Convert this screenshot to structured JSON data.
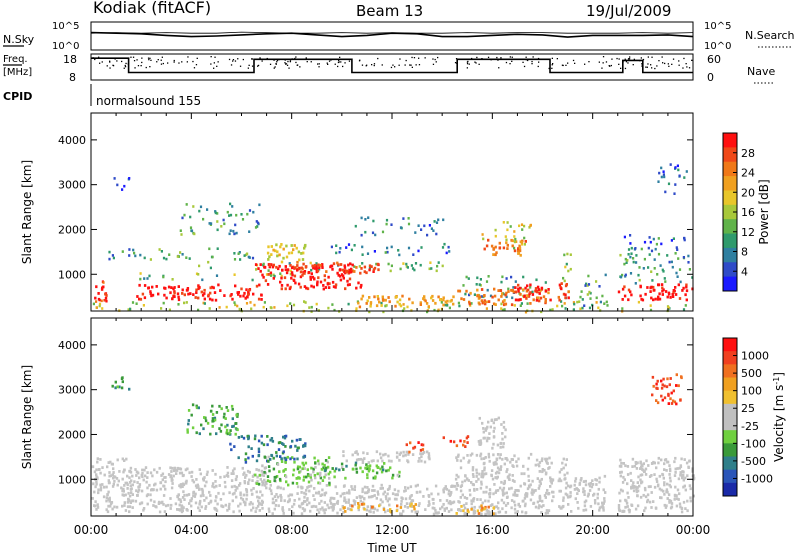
{
  "header": {
    "station": "Kodiak (fitACF)",
    "beam": "Beam 13",
    "date": "19/Jul/2009"
  },
  "panels": {
    "nsky": {
      "left_label": "N.Sky",
      "right_label": "N.Search",
      "left_ticks": [
        "10^5",
        "10^0"
      ],
      "right_ticks": [
        "10^5",
        "10^0"
      ],
      "sky_level": [
        3.1,
        3.0,
        2.9,
        2.6,
        2.4,
        2.5,
        2.7,
        2.9,
        3.0,
        2.7,
        2.4,
        2.6,
        3.0,
        2.9,
        2.4,
        2.4,
        2.6,
        2.8,
        2.7,
        2.3,
        2.6,
        2.6,
        2.6,
        2.7,
        2.4
      ],
      "search_level": [
        3.0,
        3.1,
        3.0,
        3.1,
        3.0,
        3.0,
        3.2,
        3.1,
        3.0,
        3.0,
        3.1,
        3.0,
        3.1,
        3.0,
        3.0,
        3.1,
        3.0,
        3.1,
        3.1,
        3.0,
        3.0,
        3.0,
        3.1,
        3.0,
        3.1
      ]
    },
    "freq": {
      "left_label": "Freq.",
      "left_unit": "[MHz]",
      "right_label": "Nave",
      "left_ticks": [
        "18",
        "8"
      ],
      "right_ticks": [
        "60",
        "0"
      ],
      "freq_steps": [
        {
          "t0": 0.0,
          "t1": 1.5,
          "f": 17
        },
        {
          "t0": 1.5,
          "t1": 6.5,
          "f": 10.5
        },
        {
          "t0": 6.5,
          "t1": 10.4,
          "f": 16.5
        },
        {
          "t0": 10.4,
          "t1": 14.6,
          "f": 10.5
        },
        {
          "t0": 14.6,
          "t1": 18.3,
          "f": 16.5
        },
        {
          "t0": 18.3,
          "t1": 21.2,
          "f": 10.5
        },
        {
          "t0": 21.2,
          "t1": 22.0,
          "f": 16
        },
        {
          "t0": 22.0,
          "t1": 24.0,
          "f": 10.5
        }
      ]
    },
    "cpid": {
      "label": "CPID",
      "program": "normalsound 155"
    }
  },
  "chart_data": [
    {
      "type": "heatmap",
      "title": "",
      "quantity": "Power",
      "ylabel": "Slant Range [km]",
      "xlabel": "",
      "xlim": [
        0,
        24
      ],
      "ylim": [
        180,
        4600
      ],
      "yticks": [
        1000,
        2000,
        3000,
        4000
      ],
      "colorbar": {
        "label": "Power [dB]",
        "ticks": [
          "4",
          "8",
          "12",
          "16",
          "20",
          "24",
          "28"
        ],
        "colors": [
          "#1a1aff",
          "#2f4bc8",
          "#2f7fa0",
          "#2f9a6c",
          "#60b34a",
          "#a8c83a",
          "#e8c62a",
          "#f0a020",
          "#f07818",
          "#f04818",
          "#ff1010"
        ]
      },
      "scatter_blocks": [
        {
          "t0": 0.0,
          "t1": 0.6,
          "r0": 300,
          "r1": 900,
          "level": 10
        },
        {
          "t0": 0.0,
          "t1": 24.0,
          "r0": 180,
          "r1": 420,
          "level": 5
        },
        {
          "t0": 0.5,
          "t1": 6.5,
          "r0": 1300,
          "r1": 1600,
          "level": 3
        },
        {
          "t0": 1.8,
          "t1": 8.0,
          "r0": 900,
          "r1": 1050,
          "level": 4
        },
        {
          "t0": 4.0,
          "t1": 14.0,
          "r0": 1100,
          "r1": 1300,
          "level": 4
        },
        {
          "t0": 9.5,
          "t1": 14.5,
          "r0": 1450,
          "r1": 1700,
          "level": 2
        },
        {
          "t0": 3.5,
          "t1": 6.8,
          "r0": 1900,
          "r1": 2600,
          "level": 3
        },
        {
          "t0": 10.5,
          "t1": 14.0,
          "r0": 1900,
          "r1": 2300,
          "level": 2
        },
        {
          "t0": 14.6,
          "t1": 18.3,
          "r0": 500,
          "r1": 1000,
          "level": 3
        },
        {
          "t0": 15.5,
          "t1": 17.5,
          "r0": 1600,
          "r1": 2200,
          "level": 6
        },
        {
          "t0": 18.6,
          "t1": 19.1,
          "r0": 300,
          "r1": 1500,
          "level": 4
        },
        {
          "t0": 19.2,
          "t1": 20.5,
          "r0": 300,
          "r1": 1100,
          "level": 3
        },
        {
          "t0": 21.0,
          "t1": 24.0,
          "r0": 800,
          "r1": 1500,
          "level": 3
        },
        {
          "t0": 21.2,
          "t1": 24.0,
          "r0": 1400,
          "r1": 1900,
          "level": 2
        },
        {
          "t0": 0.8,
          "t1": 1.5,
          "r0": 2900,
          "r1": 3300,
          "level": 1
        },
        {
          "t0": 22.5,
          "t1": 23.8,
          "r0": 2800,
          "r1": 3500,
          "level": 1
        }
      ],
      "bands": [
        {
          "t0": 0.1,
          "t1": 0.6,
          "r0": 450,
          "r1": 800,
          "level": 10
        },
        {
          "t0": 1.8,
          "t1": 6.8,
          "r0": 450,
          "r1": 800,
          "level": 10
        },
        {
          "t0": 6.5,
          "t1": 10.8,
          "r0": 700,
          "r1": 1250,
          "level": 10
        },
        {
          "t0": 8.0,
          "t1": 11.5,
          "r0": 1050,
          "r1": 1300,
          "level": 9
        },
        {
          "t0": 10.5,
          "t1": 14.5,
          "r0": 300,
          "r1": 550,
          "level": 7
        },
        {
          "t0": 14.6,
          "t1": 18.3,
          "r0": 350,
          "r1": 700,
          "level": 8
        },
        {
          "t0": 15.6,
          "t1": 17.3,
          "r0": 1450,
          "r1": 1800,
          "level": 8
        },
        {
          "t0": 21.0,
          "t1": 24.0,
          "r0": 450,
          "r1": 800,
          "level": 10
        },
        {
          "t0": 7.0,
          "t1": 8.5,
          "r0": 1300,
          "r1": 1700,
          "level": 6
        },
        {
          "t0": 18.6,
          "t1": 19.1,
          "r0": 450,
          "r1": 900,
          "level": 9
        },
        {
          "t0": 16.8,
          "t1": 18.3,
          "r0": 450,
          "r1": 800,
          "level": 10
        }
      ]
    },
    {
      "type": "heatmap",
      "title": "",
      "quantity": "Velocity",
      "ylabel": "Slant Range [km]",
      "xlabel": "Time UT",
      "xlim": [
        0,
        24
      ],
      "ylim": [
        180,
        4600
      ],
      "yticks": [
        1000,
        2000,
        3000,
        4000
      ],
      "xticks": [
        "00:00",
        "04:00",
        "08:00",
        "12:00",
        "16:00",
        "20:00",
        "00:00"
      ],
      "colorbar": {
        "label_main": "Velocity",
        "label_unit": "[m s",
        "label_sup": "-1",
        "label_close": "]",
        "ticks": [
          "1000",
          "500",
          "100",
          "25",
          "-25",
          "-100",
          "-500",
          "-1000"
        ],
        "colors": [
          "#1a2aa8",
          "#2a55b8",
          "#2f7f8a",
          "#3a9a3a",
          "#70d040",
          "#c0c0c0",
          "#c0c0c0",
          "#f0c030",
          "#f0a020",
          "#f07020",
          "#f04020",
          "#ff1010"
        ]
      },
      "ground_scatter": [
        {
          "t0": 0.0,
          "t1": 1.6,
          "r0": 300,
          "r1": 1500
        },
        {
          "t0": 1.5,
          "t1": 7.0,
          "r0": 300,
          "r1": 1300
        },
        {
          "t0": 7.0,
          "t1": 14.5,
          "r0": 250,
          "r1": 900
        },
        {
          "t0": 10.0,
          "t1": 13.5,
          "r0": 1400,
          "r1": 1650
        },
        {
          "t0": 14.5,
          "t1": 18.4,
          "r0": 250,
          "r1": 1600
        },
        {
          "t0": 15.4,
          "t1": 16.5,
          "r0": 1700,
          "r1": 2400
        },
        {
          "t0": 18.6,
          "t1": 19.1,
          "r0": 300,
          "r1": 1500
        },
        {
          "t0": 19.2,
          "t1": 20.5,
          "r0": 300,
          "r1": 1100
        },
        {
          "t0": 21.0,
          "t1": 24.0,
          "r0": 300,
          "r1": 1500
        }
      ],
      "ionospheric": [
        {
          "t0": 6.5,
          "t1": 9.5,
          "r0": 900,
          "r1": 1550,
          "level": 4
        },
        {
          "t0": 8.5,
          "t1": 12.5,
          "r0": 1050,
          "r1": 1300,
          "level": 4
        },
        {
          "t0": 9.0,
          "t1": 12.0,
          "r0": 1200,
          "r1": 1400,
          "level": 3
        },
        {
          "t0": 3.8,
          "t1": 5.8,
          "r0": 2000,
          "r1": 2700,
          "level": 3
        },
        {
          "t0": 5.5,
          "t1": 8.5,
          "r0": 1400,
          "r1": 2000,
          "level": 2
        },
        {
          "t0": 10.0,
          "t1": 13.0,
          "r0": 300,
          "r1": 500,
          "level": 8
        },
        {
          "t0": 14.5,
          "t1": 16.5,
          "r0": 250,
          "r1": 450,
          "level": 8
        },
        {
          "t0": 14.0,
          "t1": 15.0,
          "r0": 1750,
          "r1": 2000,
          "level": 10
        },
        {
          "t0": 12.5,
          "t1": 13.2,
          "r0": 1600,
          "r1": 1900,
          "level": 10
        },
        {
          "t0": 0.8,
          "t1": 1.5,
          "r0": 3000,
          "r1": 3300,
          "level": 3
        },
        {
          "t0": 22.3,
          "t1": 23.5,
          "r0": 2700,
          "r1": 3400,
          "level": 10
        }
      ]
    }
  ]
}
